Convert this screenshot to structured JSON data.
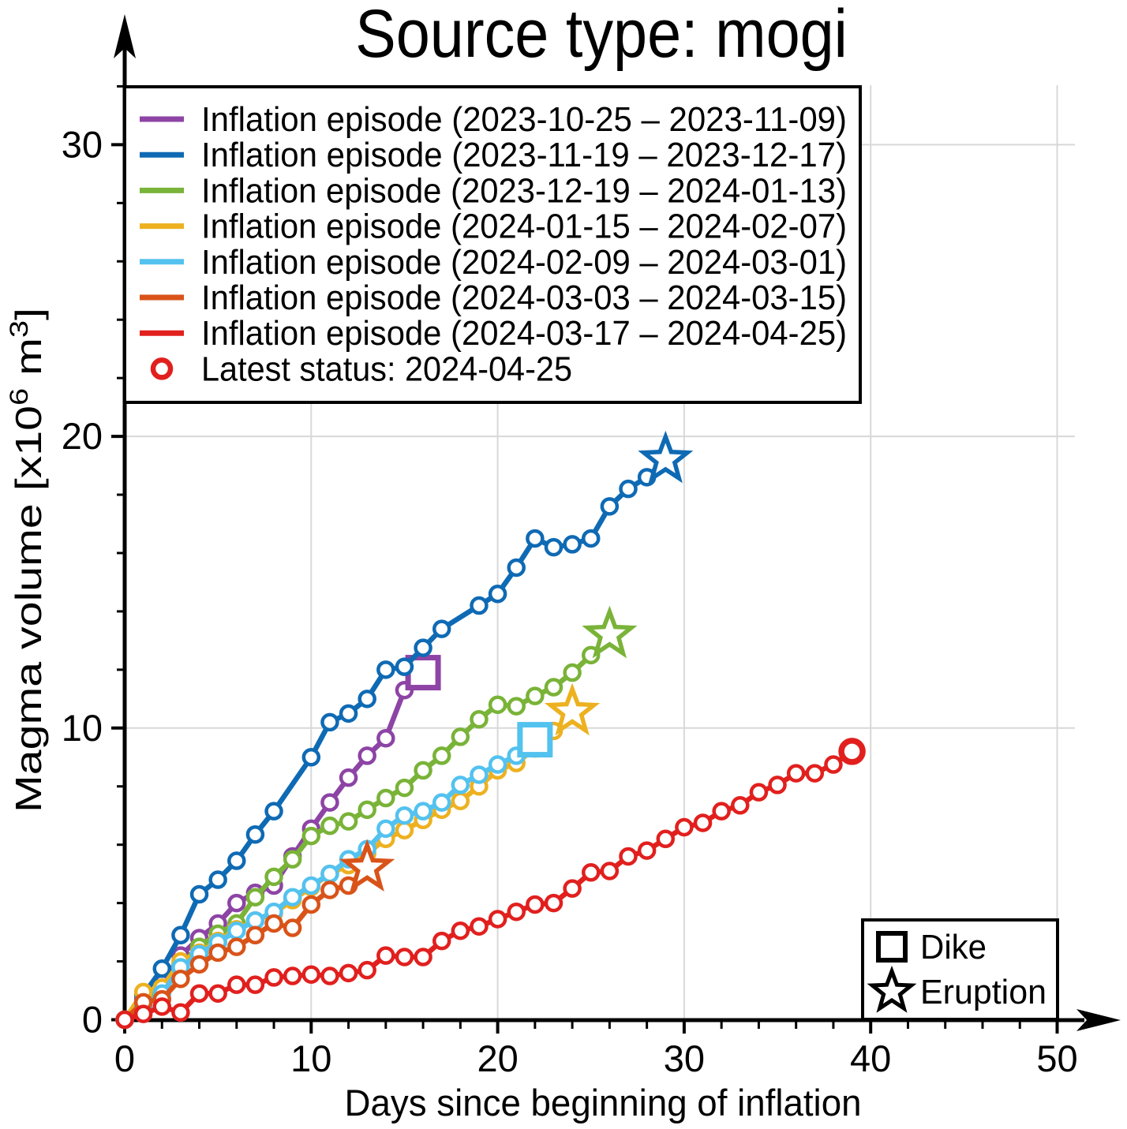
{
  "title": "Source type: mogi",
  "axes": {
    "xlabel": "Days since beginning of inflation",
    "ylabel": "Magma volume [x10⁶ m³]",
    "ylabel_parts": [
      {
        "t": "Magma volume [x10"
      },
      {
        "t": "6",
        "sup": true
      },
      {
        "t": " m"
      },
      {
        "t": "3",
        "sup": true
      },
      {
        "t": "]"
      }
    ],
    "x_ticks": [
      0,
      10,
      20,
      30,
      40,
      50
    ],
    "y_ticks": [
      0,
      10,
      20,
      30
    ],
    "x_minor_ticks": [
      2,
      4,
      6,
      8,
      12,
      14,
      16,
      18,
      22,
      24,
      26,
      28,
      32,
      34,
      36,
      38,
      42,
      44,
      46,
      48
    ],
    "y_minor_ticks": [
      2,
      4,
      6,
      8,
      12,
      14,
      16,
      18,
      22,
      24,
      26,
      28,
      32
    ],
    "xlim": [
      0,
      51
    ],
    "ylim": [
      0,
      33.5
    ],
    "grid_color": "#d8d8d8"
  },
  "legend": {
    "entries": [
      {
        "label": "Inflation episode (2023-10-25 – 2023-11-09)",
        "color": "#8d44a5"
      },
      {
        "label": "Inflation episode (2023-11-19 – 2023-12-17)",
        "color": "#0f6ab4"
      },
      {
        "label": "Inflation episode (2023-12-19 – 2024-01-13)",
        "color": "#79b338"
      },
      {
        "label": "Inflation episode (2024-01-15 – 2024-02-07)",
        "color": "#edb120"
      },
      {
        "label": "Inflation episode (2024-02-09 – 2024-03-01)",
        "color": "#53c2ef"
      },
      {
        "label": "Inflation episode (2024-03-03 – 2024-03-15)",
        "color": "#d95319"
      },
      {
        "label": "Inflation episode (2024-03-17 – 2024-04-25)",
        "color": "#e1201e"
      }
    ],
    "latest": {
      "label": "Latest status: 2024-04-25",
      "color": "#e1201e"
    }
  },
  "marker_legend": {
    "dike_label": "Dike",
    "eruption_label": "Eruption"
  },
  "chart_data": {
    "type": "line",
    "xlabel": "Days since beginning of inflation",
    "ylabel": "Magma volume [x10^6 m^3]",
    "xlim": [
      0,
      51
    ],
    "ylim": [
      0,
      33.5
    ],
    "grid": true,
    "legend_position": "upper left",
    "series": [
      {
        "name": "Inflation episode (2023-10-25 – 2023-11-09)",
        "color": "#8d44a5",
        "x": [
          0,
          1,
          2,
          3,
          4,
          5,
          6,
          7,
          8,
          9,
          10,
          11,
          12,
          13,
          14,
          15
        ],
        "y": [
          0,
          0.7,
          1.25,
          2.2,
          2.8,
          3.3,
          4.0,
          4.35,
          4.6,
          5.6,
          6.55,
          7.45,
          8.3,
          9.05,
          9.65,
          11.3
        ],
        "end_marker": {
          "type": "square",
          "meaning": "Dike",
          "x": 16,
          "y": 11.9
        }
      },
      {
        "name": "Inflation episode (2023-11-19 – 2023-12-17)",
        "color": "#0f6ab4",
        "x": [
          0,
          1,
          2,
          3,
          4,
          5,
          6,
          7,
          8,
          10,
          11,
          12,
          13,
          14,
          15,
          16,
          17,
          19,
          20,
          21,
          22,
          23,
          24,
          25,
          26,
          27,
          28
        ],
        "y": [
          0,
          0.85,
          1.75,
          2.9,
          4.3,
          4.8,
          5.45,
          6.35,
          7.15,
          9.0,
          10.2,
          10.5,
          11.0,
          12.0,
          12.1,
          12.75,
          13.4,
          14.2,
          14.6,
          15.5,
          16.5,
          16.2,
          16.3,
          16.5,
          17.6,
          18.2,
          18.6
        ],
        "end_marker": {
          "type": "star",
          "meaning": "Eruption",
          "x": 29,
          "y": 19.2
        }
      },
      {
        "name": "Inflation episode (2023-12-19 – 2024-01-13)",
        "color": "#79b338",
        "x": [
          0,
          1,
          2,
          3,
          4,
          5,
          6,
          7,
          8,
          9,
          10,
          11,
          12,
          13,
          14,
          15,
          16,
          17,
          18,
          19,
          20,
          21,
          22,
          23,
          24,
          25
        ],
        "y": [
          0,
          0.6,
          1.0,
          1.9,
          2.5,
          2.95,
          3.3,
          4.2,
          4.9,
          5.5,
          6.3,
          6.65,
          6.8,
          7.2,
          7.6,
          7.95,
          8.55,
          9.05,
          9.7,
          10.3,
          10.8,
          10.75,
          11.1,
          11.4,
          11.9,
          12.5
        ],
        "end_marker": {
          "type": "star",
          "meaning": "Eruption",
          "x": 26,
          "y": 13.2
        }
      },
      {
        "name": "Inflation episode (2024-01-15 – 2024-02-07)",
        "color": "#edb120",
        "x": [
          0,
          1,
          2,
          3,
          4,
          5,
          6,
          7,
          8,
          9,
          10,
          11,
          12,
          13,
          14,
          15,
          16,
          17,
          18,
          19,
          20,
          21,
          22,
          23
        ],
        "y": [
          0,
          0.95,
          1.1,
          2.0,
          2.3,
          2.7,
          3.1,
          3.4,
          3.65,
          4.1,
          4.55,
          5.0,
          5.3,
          5.7,
          6.2,
          6.5,
          6.85,
          7.2,
          7.5,
          8.0,
          8.55,
          8.8,
          9.3,
          9.9
        ],
        "end_marker": {
          "type": "star",
          "meaning": "Eruption",
          "x": 24,
          "y": 10.55
        }
      },
      {
        "name": "Inflation episode (2024-02-09 – 2024-03-01)",
        "color": "#53c2ef",
        "x": [
          0,
          1,
          2,
          3,
          4,
          5,
          6,
          7,
          8,
          9,
          10,
          11,
          12,
          13,
          14,
          15,
          16,
          17,
          18,
          19,
          20,
          21
        ],
        "y": [
          0,
          0.5,
          0.9,
          1.8,
          2.25,
          2.65,
          3.05,
          3.4,
          3.7,
          4.2,
          4.6,
          5.0,
          5.5,
          5.85,
          6.55,
          7.0,
          7.15,
          7.45,
          8.05,
          8.4,
          8.75,
          9.05
        ],
        "end_marker": {
          "type": "square",
          "meaning": "Dike",
          "x": 22,
          "y": 9.6
        }
      },
      {
        "name": "Inflation episode (2024-03-03 – 2024-03-15)",
        "color": "#d95319",
        "x": [
          0,
          1,
          2,
          3,
          4,
          5,
          6,
          7,
          8,
          9,
          10,
          11,
          12
        ],
        "y": [
          0,
          0.6,
          0.7,
          1.4,
          1.9,
          2.3,
          2.5,
          2.9,
          3.3,
          3.15,
          3.95,
          4.45,
          4.6
        ],
        "end_marker": {
          "type": "star",
          "meaning": "Eruption",
          "x": 13,
          "y": 5.2
        }
      },
      {
        "name": "Inflation episode (2024-03-17 – 2024-04-25)",
        "color": "#e1201e",
        "x": [
          0,
          1,
          2,
          3,
          4,
          5,
          6,
          7,
          8,
          9,
          10,
          11,
          12,
          13,
          14,
          15,
          16,
          17,
          18,
          19,
          20,
          21,
          22,
          23,
          24,
          25,
          26,
          27,
          28,
          29,
          30,
          31,
          32,
          33,
          34,
          35,
          36,
          37,
          38
        ],
        "y": [
          0,
          0.2,
          0.45,
          0.25,
          0.9,
          0.9,
          1.2,
          1.2,
          1.45,
          1.5,
          1.55,
          1.5,
          1.6,
          1.7,
          2.2,
          2.15,
          2.15,
          2.7,
          3.05,
          3.2,
          3.45,
          3.7,
          3.95,
          4.0,
          4.5,
          5.05,
          5.1,
          5.6,
          5.8,
          6.2,
          6.6,
          6.75,
          7.15,
          7.35,
          7.8,
          8.05,
          8.45,
          8.45,
          8.75
        ],
        "end_marker": {
          "type": "circle",
          "meaning": "Latest status: 2024-04-25",
          "x": 39,
          "y": 9.2
        }
      }
    ]
  }
}
